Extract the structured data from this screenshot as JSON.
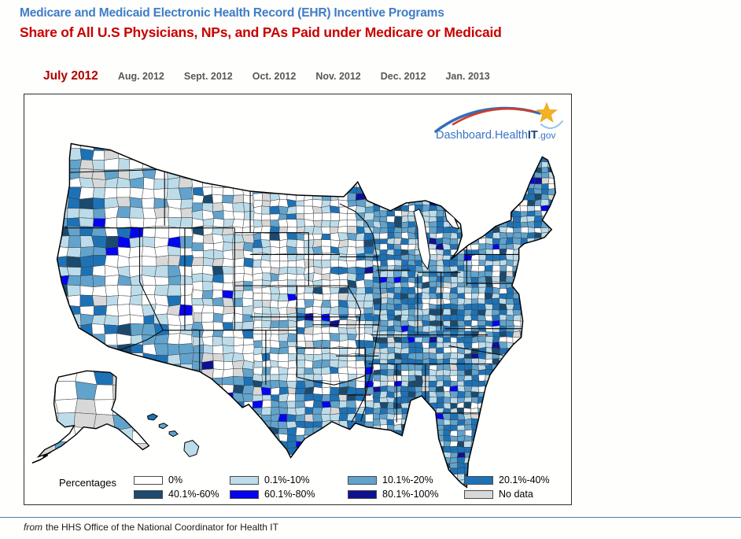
{
  "header": {
    "title": "Medicare and Medicaid Electronic Health Record (EHR) Incentive Programs",
    "subtitle": "Share of All U.S Physicians, NPs, and PAs Paid under Medicare or Medicaid"
  },
  "tabs": {
    "items": [
      {
        "label": "July 2012",
        "active": true
      },
      {
        "label": "Aug. 2012",
        "active": false
      },
      {
        "label": "Sept. 2012",
        "active": false
      },
      {
        "label": "Oct. 2012",
        "active": false
      },
      {
        "label": "Nov. 2012",
        "active": false
      },
      {
        "label": "Dec. 2012",
        "active": false
      },
      {
        "label": "Jan. 2013",
        "active": false
      }
    ]
  },
  "logo": {
    "text_main": "Dashboard.Health",
    "text_bold": "IT",
    "text_suffix": ".gov",
    "star_icon_color": "#f4b223",
    "swoosh_blue": "#2f6fba",
    "swoosh_red": "#d23b28"
  },
  "map": {
    "legend": {
      "label": "Percentages",
      "items": [
        {
          "label": "0%",
          "color": "#ffffff"
        },
        {
          "label": "0.1%-10%",
          "color": "#bcdcea"
        },
        {
          "label": "10.1%-20%",
          "color": "#61a3cc"
        },
        {
          "label": "20.1%-40%",
          "color": "#1d72b6"
        },
        {
          "label": "40.1%-60%",
          "color": "#1b4a6e"
        },
        {
          "label": "60.1%-80%",
          "color": "#0504f0"
        },
        {
          "label": "80.1%-100%",
          "color": "#101190"
        },
        {
          "label": "No data",
          "color": "#d8d8d8"
        }
      ]
    },
    "texture": {
      "seed": 7,
      "weights": {
        "west": [
          0.22,
          0.2,
          0.24,
          0.2,
          0.05,
          0.02,
          0.01,
          0.06
        ],
        "plains": [
          0.47,
          0.24,
          0.1,
          0.07,
          0.02,
          0.007,
          0.003,
          0.09
        ],
        "east": [
          0.12,
          0.23,
          0.28,
          0.26,
          0.06,
          0.02,
          0.01,
          0.02
        ],
        "alaska": [
          0.45,
          0.26,
          0.09,
          0.06,
          0.01,
          0.0,
          0.0,
          0.13
        ]
      }
    }
  },
  "footer": {
    "prefix": "from",
    "text": "the HHS Office of the National Coordinator for Health IT"
  },
  "colors": {
    "title": "#3f7cc6",
    "subtitle": "#c80000",
    "tab_active": "#b00000",
    "tab_inactive": "#58585a",
    "rule": "#4a7cb8",
    "county_stroke": "#3f3f3f",
    "state_stroke": "#0a0a0a"
  }
}
